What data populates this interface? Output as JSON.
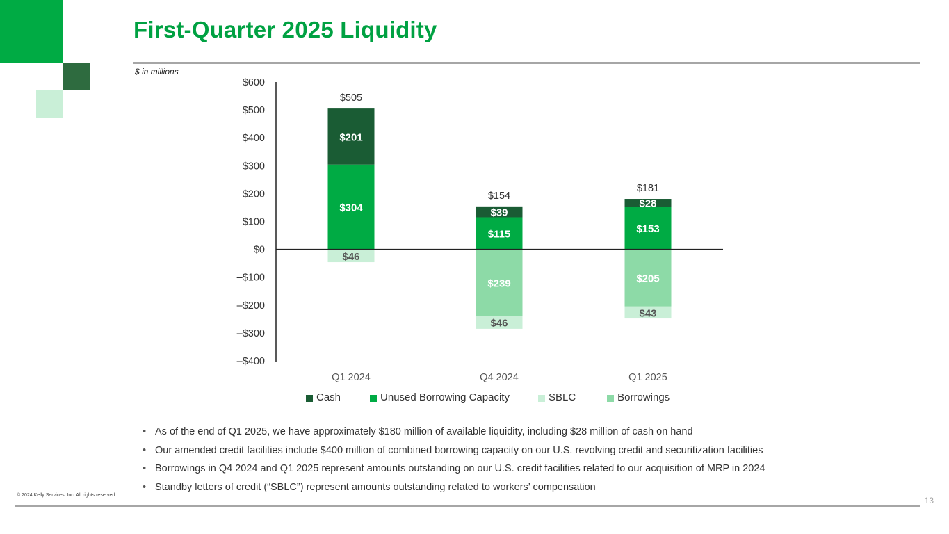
{
  "colors": {
    "brand": "#00AB44",
    "dark_green": "#1a5c34",
    "deco_dark": "#2e6b3f",
    "light_green": "#c9efd7",
    "borrow_green": "#8ddaa7",
    "title": "#00A142"
  },
  "slide": {
    "title": "First-Quarter 2025 Liquidity",
    "units_note": "$ in millions",
    "copyright": "© 2024 Kelly Services, Inc. All rights reserved.",
    "page_number": "13"
  },
  "chart_data": {
    "type": "bar",
    "stacked": true,
    "categories": [
      "Q1 2024",
      "Q4 2024",
      "Q1 2025"
    ],
    "series": [
      {
        "name": "Cash",
        "color": "#1a5c34",
        "values": [
          201,
          39,
          28
        ],
        "labels": [
          "$201",
          "$39",
          "$28"
        ]
      },
      {
        "name": "Unused Borrowing Capacity",
        "color": "#00AB44",
        "values": [
          304,
          115,
          153
        ],
        "labels": [
          "$304",
          "$115",
          "$153"
        ]
      },
      {
        "name": "SBLC",
        "color": "#c9efd7",
        "values": [
          -46,
          -46,
          -43
        ],
        "labels": [
          "$46",
          "$46",
          "$43"
        ]
      },
      {
        "name": "Borrowings",
        "color": "#8ddaa7",
        "values": [
          0,
          -239,
          -205
        ],
        "labels": [
          "",
          "$239",
          "$205"
        ]
      }
    ],
    "stack_order_positive": [
      "Unused Borrowing Capacity",
      "Cash"
    ],
    "stack_order_negative": [
      "Borrowings",
      "SBLC"
    ],
    "totals": [
      505,
      154,
      181
    ],
    "total_labels": [
      "$505",
      "$154",
      "$181"
    ],
    "ylim": [
      -400,
      600
    ],
    "yticks": [
      600,
      500,
      400,
      300,
      200,
      100,
      0,
      -100,
      -200,
      -300,
      -400
    ],
    "ytick_labels": [
      "$600",
      "$500",
      "$400",
      "$300",
      "$200",
      "$100",
      "$0",
      "–$100",
      "–$200",
      "–$300",
      "–$400"
    ],
    "xlabel": "",
    "ylabel": "",
    "legend_position": "bottom"
  },
  "legend": [
    {
      "label": "Cash",
      "color": "#1a5c34"
    },
    {
      "label": "Unused Borrowing Capacity",
      "color": "#00AB44"
    },
    {
      "label": "SBLC",
      "color": "#c9efd7"
    },
    {
      "label": "Borrowings",
      "color": "#8ddaa7"
    }
  ],
  "bullets": [
    "As of the end of Q1 2025, we have approximately $180 million of available liquidity, including $28 million of cash on hand",
    "Our amended credit facilities include $400 million of combined borrowing capacity on our U.S. revolving credit and securitization facilities",
    "Borrowings in Q4 2024 and Q1 2025 represent amounts outstanding on our U.S. credit facilities related to our acquisition of MRP in 2024",
    "Standby letters of credit (“SBLC”) represent amounts outstanding related to workers’ compensation"
  ]
}
